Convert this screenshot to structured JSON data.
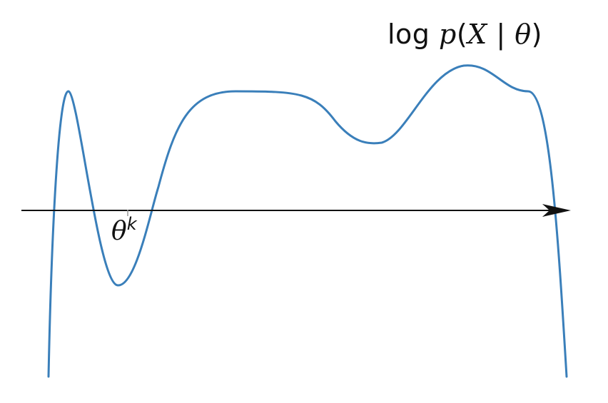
{
  "diagram": {
    "curve_label": {
      "prefix": "log ",
      "p": "p",
      "open": "(",
      "x": "X",
      "bar": " | ",
      "theta": "θ",
      "close": ")"
    },
    "point_label": {
      "symbol": "θ",
      "superscript": "k"
    },
    "colors": {
      "curve": "#3a7fba",
      "axis": "#111111",
      "text": "#111111"
    }
  }
}
